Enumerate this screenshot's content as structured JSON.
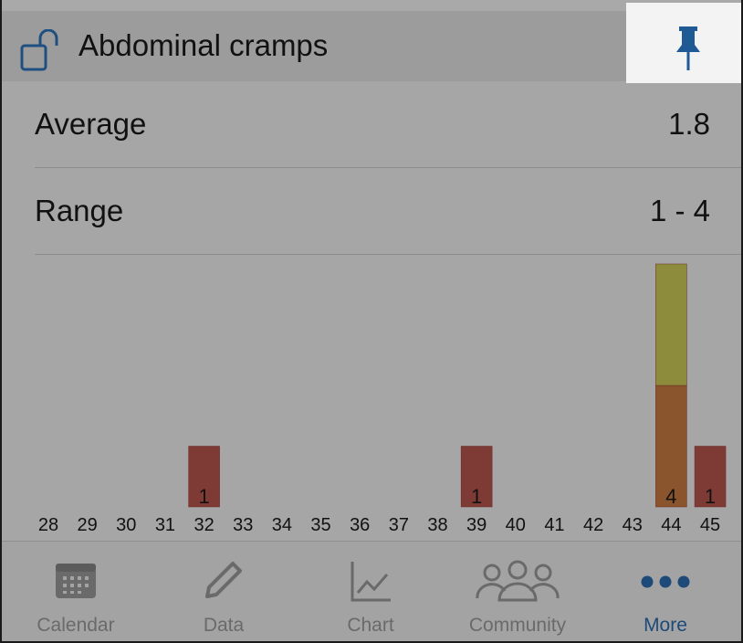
{
  "header": {
    "title": "Abdominal cramps",
    "lock_icon": "unlocked-padlock-icon",
    "pin_icon": "pin-icon"
  },
  "stats": {
    "average_label": "Average",
    "average_value": "1.8",
    "range_label": "Range",
    "range_value": "1 - 4"
  },
  "chart_data": {
    "type": "bar",
    "categories": [
      "28",
      "29",
      "30",
      "31",
      "32",
      "33",
      "34",
      "35",
      "36",
      "37",
      "38",
      "39",
      "40",
      "41",
      "42",
      "43",
      "44",
      "45"
    ],
    "series": [
      {
        "values": [
          0,
          0,
          0,
          0,
          1,
          0,
          0,
          0,
          0,
          0,
          0,
          1,
          0,
          0,
          0,
          0,
          4,
          1
        ]
      }
    ],
    "bar_segments": {
      "32": [
        {
          "color": "#7e3a35"
        }
      ],
      "39": [
        {
          "color": "#7e3a35"
        }
      ],
      "44": [
        {
          "color": "#8a552c"
        },
        {
          "color": "#8c8c3c"
        }
      ],
      "45": [
        {
          "color": "#7e3a35"
        }
      ]
    },
    "data_labels": {
      "32": "1",
      "39": "1",
      "44": "4",
      "45": "1"
    },
    "ylim": [
      0,
      4
    ],
    "grid": false
  },
  "tabs": [
    {
      "label": "Calendar",
      "icon": "calendar-icon",
      "active": false
    },
    {
      "label": "Data",
      "icon": "pencil-icon",
      "active": false
    },
    {
      "label": "Chart",
      "icon": "line-chart-icon",
      "active": false
    },
    {
      "label": "Community",
      "icon": "people-icon",
      "active": false
    },
    {
      "label": "More",
      "icon": "more-dots-icon",
      "active": true
    }
  ],
  "colors": {
    "accent": "#1d4a78",
    "bar_red": "#7e3a35",
    "bar_orange": "#8a552c",
    "bar_olive": "#8c8c3c"
  }
}
